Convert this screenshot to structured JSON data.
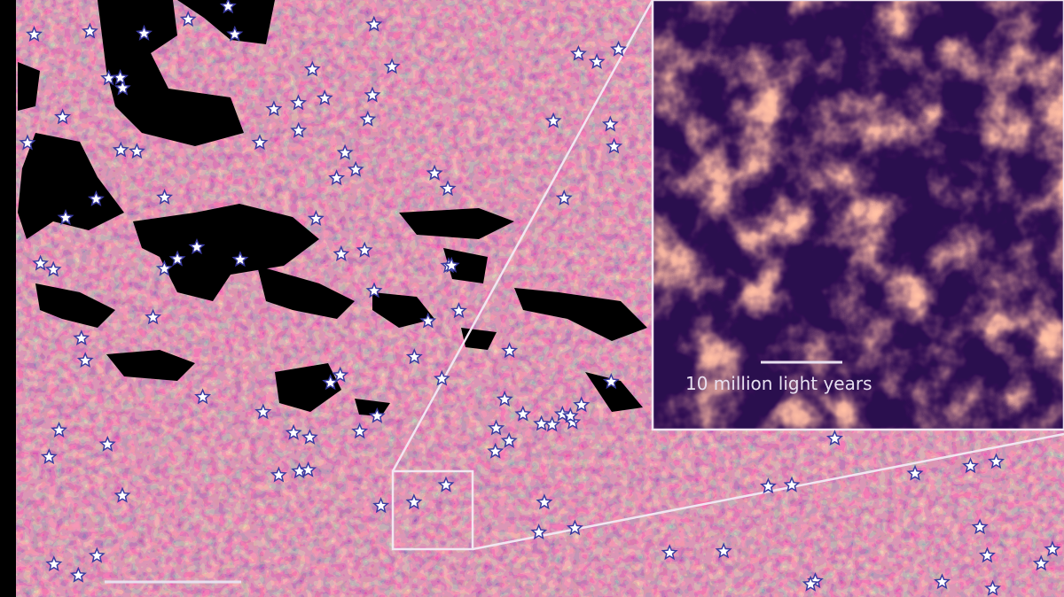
{
  "inset": {
    "scale_label": "10 million light years"
  }
}
